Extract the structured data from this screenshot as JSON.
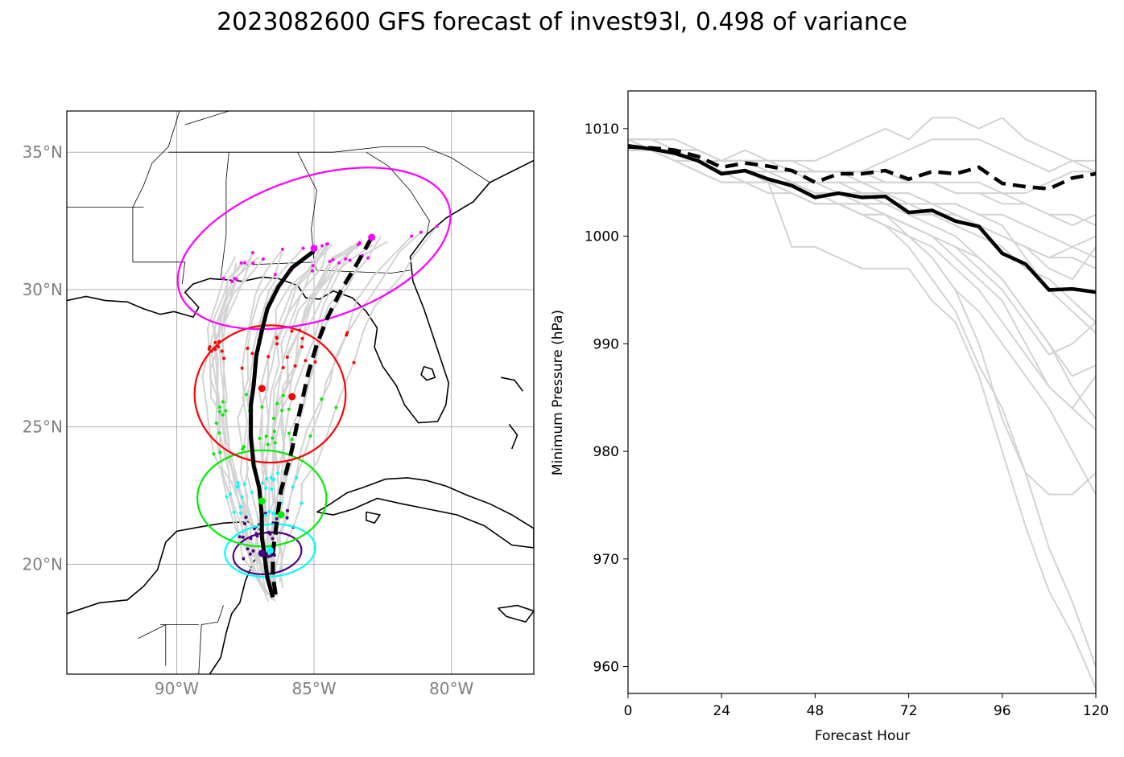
{
  "figure": {
    "title": "2023082600 GFS forecast of invest93l, 0.498 of variance"
  },
  "chart_data": [
    {
      "type": "scatter",
      "name": "track-map",
      "xlim": [
        -94,
        -77
      ],
      "ylim": [
        16,
        36.5
      ],
      "xticks": [
        -90,
        -85,
        -80
      ],
      "xtick_labels": [
        "90°W",
        "85°W",
        "80°W"
      ],
      "yticks": [
        20,
        25,
        30,
        35
      ],
      "ytick_labels": [
        "20°N",
        "25°N",
        "30°N",
        "35°N"
      ],
      "grid": true,
      "colors": {
        "ensemble_track": "#d3d3d3",
        "mean_track": "#000000",
        "ellipse_0h": "#4b0082",
        "ellipse_24h": "#00ffff",
        "ellipse_48h": "#00ee00",
        "ellipse_72h": "#ff0000",
        "ellipse_96h": "#ff00ff"
      },
      "solid_track": {
        "lon": [
          -86.5,
          -86.7,
          -86.8,
          -86.9,
          -86.9,
          -87.0,
          -87.2,
          -87.3,
          -87.3,
          -87.2,
          -87.1,
          -86.9,
          -86.7,
          -86.3,
          -85.8,
          -85.0
        ],
        "lat": [
          18.8,
          19.5,
          20.3,
          21.0,
          21.8,
          22.8,
          23.6,
          24.6,
          25.8,
          26.5,
          27.6,
          28.5,
          29.3,
          30.1,
          30.8,
          31.4
        ]
      },
      "dashed_track": {
        "lon": [
          -86.4,
          -86.5,
          -86.5,
          -86.4,
          -86.3,
          -86.2,
          -86.0,
          -85.8,
          -85.6,
          -85.4,
          -85.2,
          -84.9,
          -84.5,
          -84.0,
          -83.4,
          -82.9
        ],
        "lat": [
          18.9,
          19.6,
          20.4,
          21.2,
          22.0,
          22.7,
          23.4,
          24.2,
          25.2,
          26.1,
          27.0,
          28.0,
          29.0,
          30.0,
          31.0,
          31.9
        ]
      },
      "mean_points": [
        {
          "lon": -86.9,
          "lat": 20.4,
          "color": "#4b0082"
        },
        {
          "lon": -86.6,
          "lat": 20.5,
          "color": "#00ffff"
        },
        {
          "lon": -86.9,
          "lat": 22.3,
          "color": "#00ee00"
        },
        {
          "lon": -86.2,
          "lat": 21.8,
          "color": "#00ee00"
        },
        {
          "lon": -86.9,
          "lat": 26.4,
          "color": "#ff0000"
        },
        {
          "lon": -85.8,
          "lat": 26.1,
          "color": "#ff0000"
        },
        {
          "lon": -85.0,
          "lat": 31.5,
          "color": "#ff00ff"
        },
        {
          "lon": -82.9,
          "lat": 31.9,
          "color": "#ff00ff"
        }
      ],
      "ellipses": [
        {
          "lon": -86.7,
          "lat": 20.4,
          "rx": 1.25,
          "ry": 0.75,
          "angle": -8,
          "color": "#4b0082"
        },
        {
          "lon": -86.6,
          "lat": 20.5,
          "rx": 1.65,
          "ry": 0.95,
          "angle": -5,
          "color": "#00ffff"
        },
        {
          "lon": -86.9,
          "lat": 22.4,
          "rx": 2.35,
          "ry": 1.75,
          "angle": 0,
          "color": "#00ee00"
        },
        {
          "lon": -86.6,
          "lat": 26.2,
          "rx": 2.75,
          "ry": 2.5,
          "angle": 0,
          "color": "#ff0000"
        },
        {
          "lon": -85.0,
          "lat": 31.5,
          "rx": 5.15,
          "ry": 2.6,
          "angle": -18,
          "color": "#ff00ff"
        }
      ]
    },
    {
      "type": "line",
      "name": "pressure-plot",
      "xlabel": "Forecast Hour",
      "ylabel": "Minimum Pressure (hPa)",
      "xlim": [
        0,
        120
      ],
      "ylim": [
        957.5,
        1013.5
      ],
      "xticks": [
        0,
        24,
        48,
        72,
        96,
        120
      ],
      "yticks": [
        960,
        970,
        980,
        990,
        1000,
        1010
      ],
      "x": [
        0,
        6,
        12,
        18,
        24,
        30,
        36,
        42,
        48,
        54,
        60,
        66,
        72,
        78,
        84,
        90,
        96,
        102,
        108,
        114,
        120
      ],
      "series": [
        {
          "style": "solid",
          "color": "#000000",
          "values": [
            1008.4,
            1008.1,
            1007.7,
            1007.0,
            1005.8,
            1006.1,
            1005.3,
            1004.7,
            1003.6,
            1004.0,
            1003.6,
            1003.7,
            1002.2,
            1002.4,
            1001.4,
            1000.9,
            998.4,
            997.4,
            995.0,
            995.1,
            994.8
          ]
        },
        {
          "style": "dashed",
          "color": "#000000",
          "values": [
            1008.3,
            1008.2,
            1008.0,
            1007.4,
            1006.4,
            1006.8,
            1006.5,
            1006.1,
            1005.0,
            1005.8,
            1005.8,
            1006.1,
            1005.3,
            1006.0,
            1005.8,
            1006.4,
            1004.9,
            1004.6,
            1004.4,
            1005.4,
            1005.8
          ]
        }
      ],
      "ensemble_members": [
        [
          1009,
          1009,
          1009,
          1008,
          1007,
          1008,
          1007,
          1007,
          1007,
          1008,
          1009,
          1010,
          1009,
          1011,
          1011,
          1010,
          1011,
          1009,
          1008,
          1007,
          1006
        ],
        [
          1009,
          1008,
          1008,
          1007,
          1006,
          1006,
          1006,
          1005,
          1004,
          1003,
          1003,
          1002,
          1000,
          998,
          995,
          993,
          990,
          987,
          984,
          980,
          976
        ],
        [
          1008,
          1008,
          1008,
          1007,
          1006,
          1006,
          1005,
          1004,
          1003,
          1003,
          1002,
          1001,
          999,
          996,
          993,
          988,
          984,
          978,
          971,
          966,
          960
        ],
        [
          1008,
          1008,
          1007,
          1006,
          1005,
          1005,
          1005,
          999,
          999,
          998,
          997,
          997,
          997,
          994,
          992,
          987,
          980,
          973,
          967,
          963,
          958
        ],
        [
          1009,
          1009,
          1008,
          1007,
          1006,
          1006,
          1005,
          1004,
          1003,
          1003,
          1003,
          1002,
          1001,
          1000,
          998,
          996,
          994,
          990,
          986,
          984,
          987
        ],
        [
          1008,
          1008,
          1008,
          1007,
          1007,
          1007,
          1006,
          1006,
          1005,
          1005,
          1005,
          1004,
          1004,
          1003,
          1003,
          1002,
          1001,
          998,
          995,
          993,
          991
        ],
        [
          1008,
          1008,
          1007,
          1007,
          1006,
          1006,
          1006,
          1005,
          1004,
          1004,
          1003,
          1003,
          1002,
          1002,
          1001,
          1000,
          999,
          997,
          996,
          994,
          992
        ],
        [
          1009,
          1008,
          1008,
          1008,
          1007,
          1007,
          1007,
          1007,
          1006,
          1006,
          1006,
          1006,
          1005,
          1005,
          1005,
          1005,
          1004,
          1003,
          1002,
          1001,
          1002
        ],
        [
          1008,
          1008,
          1007,
          1007,
          1006,
          1006,
          1005,
          1005,
          1004,
          1004,
          1004,
          1003,
          1003,
          1002,
          1002,
          1001,
          1000,
          999,
          998,
          998,
          997
        ],
        [
          1008,
          1008,
          1007,
          1006,
          1005,
          1005,
          1004,
          1004,
          1003,
          1003,
          1002,
          1002,
          1001,
          1000,
          999,
          998,
          996,
          993,
          990,
          987,
          988
        ],
        [
          1009,
          1009,
          1008,
          1008,
          1007,
          1007,
          1007,
          1006,
          1006,
          1006,
          1006,
          1007,
          1008,
          1009,
          1009,
          1009,
          1008,
          1007,
          1006,
          1007,
          1007
        ],
        [
          1008,
          1008,
          1008,
          1007,
          1006,
          1006,
          1006,
          1005,
          1005,
          1004,
          1004,
          1004,
          1003,
          1003,
          1002,
          1001,
          1000,
          999,
          997,
          996,
          999
        ],
        [
          1008,
          1008,
          1007,
          1007,
          1006,
          1005,
          1005,
          1004,
          1003,
          1003,
          1002,
          1001,
          1000,
          999,
          997,
          995,
          992,
          989,
          986,
          984,
          982
        ],
        [
          1008,
          1008,
          1008,
          1008,
          1007,
          1007,
          1007,
          1006,
          1006,
          1006,
          1006,
          1005,
          1005,
          1005,
          1004,
          1004,
          1003,
          1003,
          1002,
          1002,
          1001
        ],
        [
          1009,
          1008,
          1008,
          1007,
          1006,
          1006,
          1005,
          1005,
          1004,
          1004,
          1003,
          1003,
          1002,
          1001,
          1000,
          998,
          996,
          993,
          990,
          986,
          983
        ],
        [
          1008,
          1008,
          1008,
          1007,
          1006,
          1006,
          1006,
          1005,
          1005,
          1005,
          1004,
          1004,
          1004,
          1003,
          1003,
          1002,
          1002,
          1001,
          1000,
          999,
          998
        ],
        [
          1008,
          1008,
          1007,
          1006,
          1005,
          1005,
          1004,
          1004,
          1003,
          1003,
          1002,
          1002,
          1001,
          1000,
          999,
          997,
          995,
          992,
          989,
          990,
          992
        ],
        [
          1008,
          1008,
          1008,
          1007,
          1007,
          1007,
          1006,
          1006,
          1006,
          1006,
          1005,
          1005,
          1005,
          1005,
          1004,
          1004,
          1004,
          1004,
          1005,
          1006,
          1006
        ],
        [
          1008,
          1008,
          1007,
          1007,
          1006,
          1006,
          1005,
          1005,
          1004,
          1004,
          1004,
          1003,
          1003,
          1002,
          1002,
          1001,
          1000,
          999,
          998,
          999,
          1000
        ],
        [
          1008,
          1008,
          1008,
          1007,
          1006,
          1006,
          1005,
          1004,
          1003,
          1003,
          1002,
          1001,
          1000,
          998,
          995,
          990,
          983,
          978,
          976,
          976,
          978
        ]
      ]
    }
  ]
}
